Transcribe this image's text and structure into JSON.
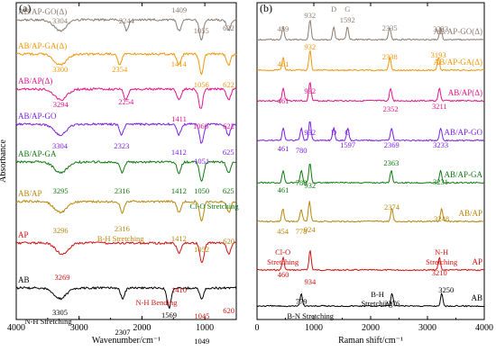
{
  "chart_data": [
    {
      "type": "line",
      "panel_label": "(a)",
      "xlabel": "Wavenumber/cm⁻¹",
      "ylabel": "Absorbance",
      "xlim": [
        4000,
        500
      ],
      "x_ticks": [
        4000,
        3000,
        2000,
        1000
      ],
      "tick_labels": [
        "4000",
        "3000",
        "2000",
        "1000"
      ],
      "grid": false,
      "series": [
        {
          "name": "AB/AP-GO(Δ)",
          "color": "#8c7c70",
          "peaks": [
            3304,
            2244,
            1409,
            1055,
            622
          ]
        },
        {
          "name": "AB/AP-GA(Δ)",
          "color": "#f0960a",
          "peaks": [
            3300,
            2354,
            1414,
            1056,
            622
          ]
        },
        {
          "name": "AB/AP(Δ)",
          "color": "#e0148c",
          "peaks": [
            3294,
            2254,
            1411,
            1066,
            622
          ]
        },
        {
          "name": "AB/AP-GO",
          "color": "#7c1ee6",
          "peaks": [
            3304,
            2323,
            1412,
            1051,
            625
          ]
        },
        {
          "name": "AB/AP-GA",
          "color": "#107a10",
          "peaks": [
            3295,
            2316,
            1412,
            1050,
            625
          ]
        },
        {
          "name": "AB/AP",
          "color": "#b8860b",
          "peaks": [
            3296,
            2316,
            1412,
            1052,
            620
          ]
        },
        {
          "name": "AP",
          "color": "#d01010",
          "peaks": [
            3269,
            1410,
            1045,
            620
          ]
        },
        {
          "name": "AB",
          "color": "#000000",
          "peaks": [
            3305,
            2307,
            1569,
            1049
          ]
        }
      ],
      "annotations": [
        "3304",
        "2244",
        "1409",
        "1055",
        "622",
        "3300",
        "2354",
        "1414",
        "1056",
        "622",
        "3294",
        "2254",
        "1411",
        "1066",
        "622",
        "3304",
        "2323",
        "1412",
        "1051",
        "625",
        "3295",
        "2316",
        "1412",
        "1050",
        "625",
        "Cl-O Stretching",
        "3296",
        "2316",
        "B-H Stretching",
        "1412",
        "1052",
        "620",
        "3269",
        "1410",
        "N-H Bending",
        "1045",
        "620",
        "3305",
        "N-H Stretching",
        "2307",
        "1569",
        "1049"
      ]
    },
    {
      "type": "line",
      "panel_label": "(b)",
      "xlabel": "Raman shift/cm⁻¹",
      "xlim": [
        0,
        4000
      ],
      "x_ticks": [
        0,
        1000,
        2000,
        3000,
        4000
      ],
      "tick_labels": [
        "0",
        "1000",
        "2000",
        "3000",
        "4000"
      ],
      "grid": false,
      "series": [
        {
          "name": "AB/AP-GO(Δ)",
          "color": "#8c7c70",
          "peaks": [
            459,
            932,
            1350,
            1592,
            2335,
            3233
          ]
        },
        {
          "name": "AB/AP-GA(Δ)",
          "color": "#f0960a",
          "peaks": [
            461,
            932,
            2338,
            3193
          ]
        },
        {
          "name": "AB/AP(Δ)",
          "color": "#e0148c",
          "peaks": [
            461,
            932,
            2352,
            3211
          ]
        },
        {
          "name": "AB/AP-GO",
          "color": "#7c1ee6",
          "peaks": [
            461,
            780,
            932,
            1350,
            1597,
            2369,
            3233
          ]
        },
        {
          "name": "AB/AP-GA",
          "color": "#107a10",
          "peaks": [
            461,
            780,
            932,
            2363,
            3231
          ]
        },
        {
          "name": "AB/AP",
          "color": "#b8860b",
          "peaks": [
            454,
            778,
            924,
            2374,
            3248
          ]
        },
        {
          "name": "AP",
          "color": "#d01010",
          "peaks": [
            460,
            934,
            3210
          ]
        },
        {
          "name": "AB",
          "color": "#000000",
          "peaks": [
            779,
            2376,
            3250
          ]
        }
      ],
      "annotations": [
        "459",
        "932",
        "D",
        "G",
        "1592",
        "2335",
        "3233",
        "932",
        "461",
        "2338",
        "3193",
        "461",
        "932",
        "2352",
        "3211",
        "461",
        "932",
        "780",
        "D",
        "G",
        "1597",
        "2369",
        "3233",
        "2363",
        "780",
        "461",
        "932",
        "3231",
        "2374",
        "454",
        "778",
        "924",
        "3248",
        "Cl-O",
        "Stretching",
        "460",
        "934",
        "N-H",
        "Stretching",
        "3210",
        "3250",
        "779",
        "B-N Stretching",
        "B-H",
        "Stretching",
        "2376"
      ]
    }
  ]
}
